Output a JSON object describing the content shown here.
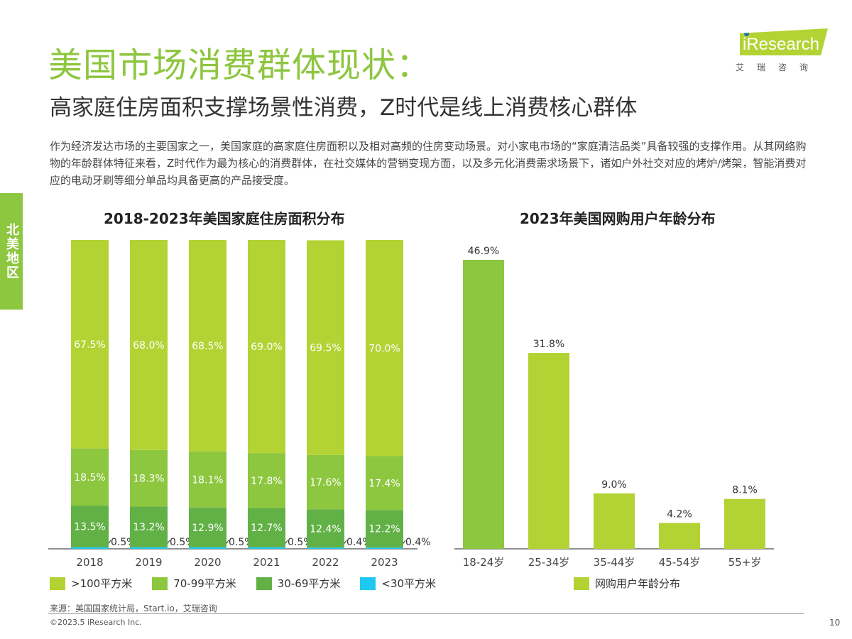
{
  "header": {
    "title": "美国市场消费群体现状：",
    "subtitle": "高家庭住房面积支撑场景性消费，Z时代是线上消费核心群体",
    "body": "作为经济发达市场的主要国家之一，美国家庭的高家庭住房面积以及相对高频的住房变动场景。对小家电市场的“家庭清洁品类”具备较强的支撑作用。从其网络购物的年龄群体特征来看，Z时代作为最为核心的消费群体，在社交媒体的营销变现方面，以及多元化消费需求场景下，诸如户外社交对应的烤炉/烤架，智能消费对应的电动牙刷等细分单品均具备更高的产品接受度。"
  },
  "side_tab": "北美地区",
  "logo": {
    "text": "iResearch",
    "cn": "艾瑞咨询"
  },
  "chart_data": [
    {
      "type": "bar",
      "stacked": true,
      "title": "2018-2023年美国家庭住房面积分布",
      "categories": [
        "2018",
        "2019",
        "2020",
        "2021",
        "2022",
        "2023"
      ],
      "series": [
        {
          "name": "<30平方米",
          "color": "#1ec8f0",
          "values": [
            0.5,
            0.5,
            0.5,
            0.5,
            0.4,
            0.4
          ],
          "labels": [
            "0.5%",
            "0.5%",
            "0.5%",
            "0.5%",
            "0.4%",
            "0.4%"
          ]
        },
        {
          "name": "30-69平方米",
          "color": "#62b146",
          "values": [
            13.5,
            13.2,
            12.9,
            12.7,
            12.4,
            12.2
          ],
          "labels": [
            "13.5%",
            "13.2%",
            "12.9%",
            "12.7%",
            "12.4%",
            "12.2%"
          ]
        },
        {
          "name": "70-99平方米",
          "color": "#8dc63f",
          "values": [
            18.5,
            18.3,
            18.1,
            17.8,
            17.6,
            17.4
          ],
          "labels": [
            "18.5%",
            "18.3%",
            "18.1%",
            "17.8%",
            "17.6%",
            "17.4%"
          ]
        },
        {
          "name": ">100平方米",
          "color": "#b3d334",
          "values": [
            67.5,
            68.0,
            68.5,
            69.0,
            69.5,
            70.0
          ],
          "labels": [
            "67.5%",
            "68.0%",
            "68.5%",
            "69.0%",
            "69.5%",
            "70.0%"
          ]
        }
      ],
      "legend_order": [
        ">100平方米",
        "70-99平方米",
        "30-69平方米",
        "<30平方米"
      ],
      "legend": "bottom",
      "ylim": [
        0,
        100
      ],
      "grid": false
    },
    {
      "type": "bar",
      "title": "2023年美国网购用户年龄分布",
      "categories": [
        "18-24岁",
        "25-34岁",
        "35-44岁",
        "45-54岁",
        "55+岁"
      ],
      "series": [
        {
          "name": "网购用户年龄分布",
          "color": "#b3d334",
          "highlight_color": "#8dc63f",
          "values": [
            46.9,
            31.8,
            9.0,
            4.2,
            8.1
          ],
          "labels": [
            "46.9%",
            "31.8%",
            "9.0%",
            "4.2%",
            "8.1%"
          ]
        }
      ],
      "legend": "bottom",
      "ylim": [
        0,
        50
      ],
      "grid": false
    }
  ],
  "footer": {
    "source": "来源：美国国家统计局，Start.io，艾瑞咨询",
    "copyright": "©2023.5 iResearch Inc.",
    "page": "10"
  }
}
